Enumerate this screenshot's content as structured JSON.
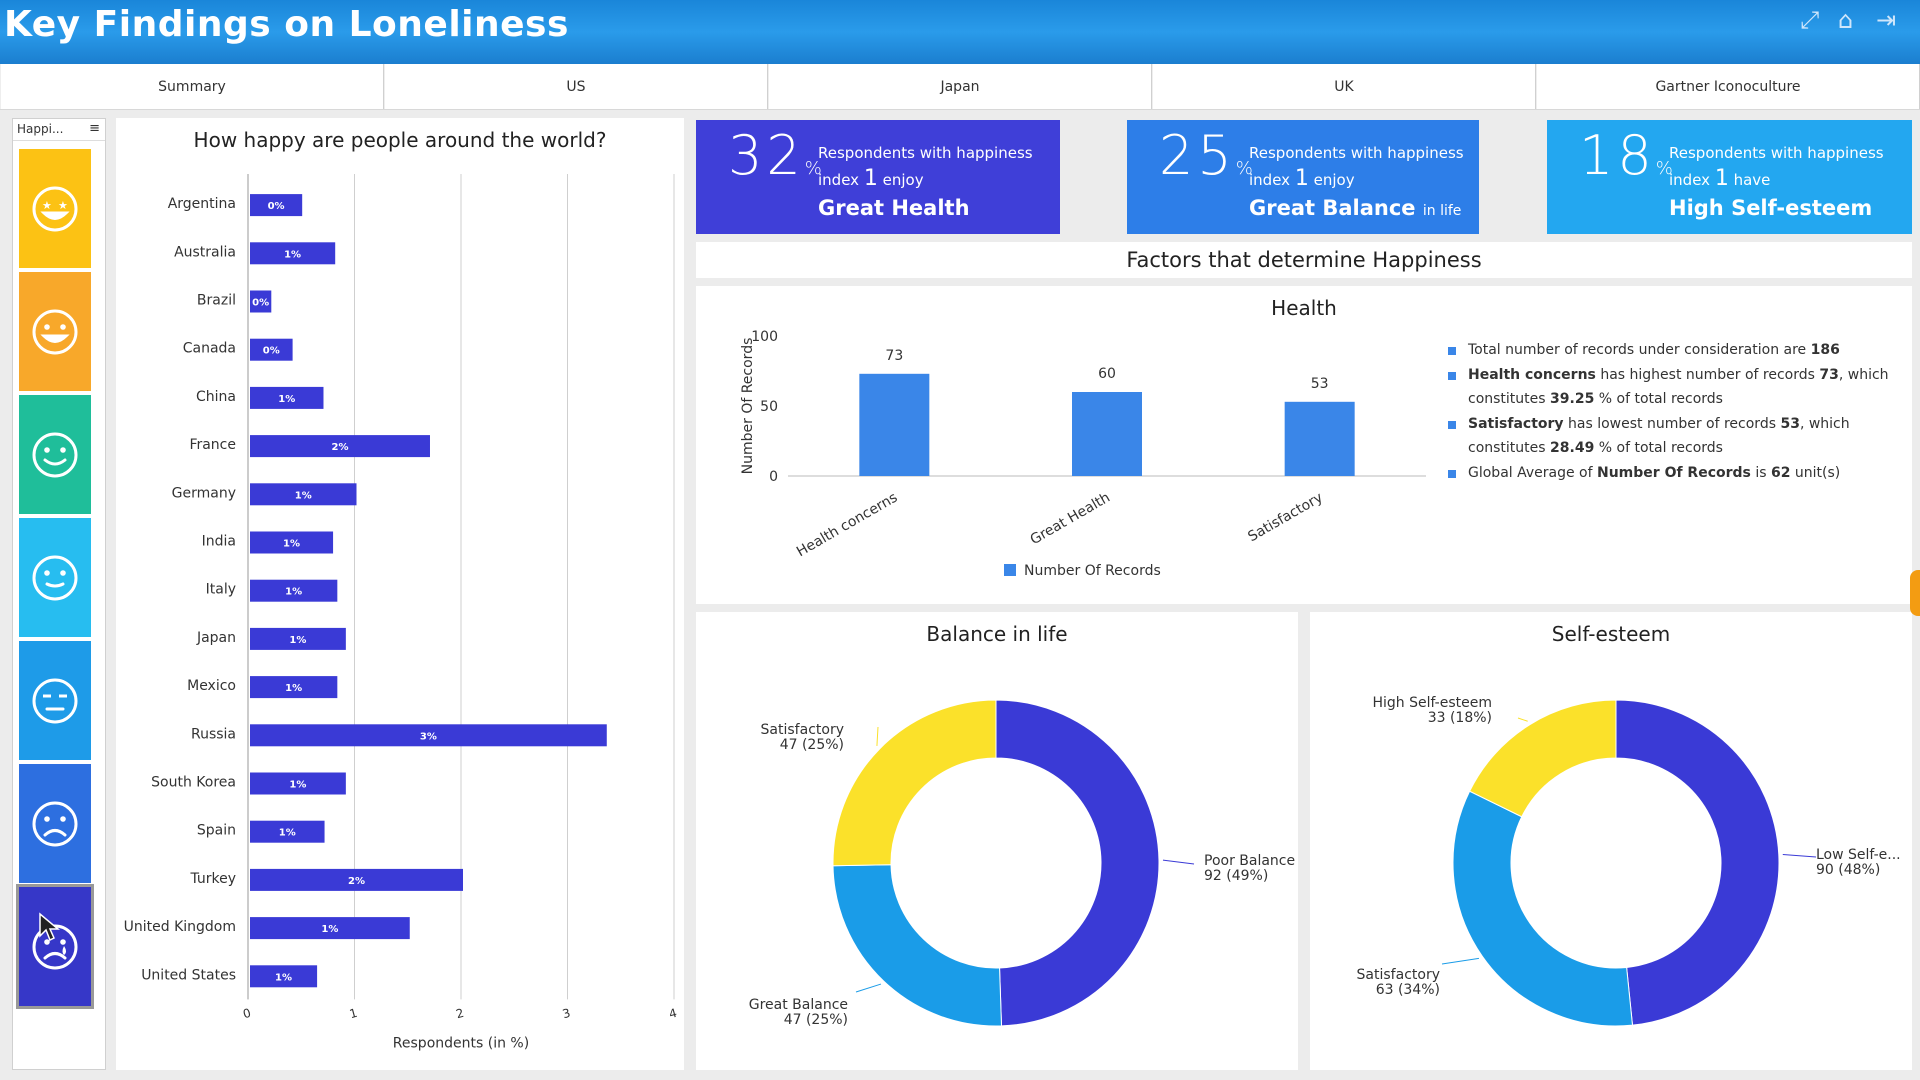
{
  "header": {
    "title": "Key Findings on Loneliness"
  },
  "tabs": [
    "Summary",
    "US",
    "Japan",
    "UK",
    "Gartner Iconoculture"
  ],
  "selector": {
    "label": "Happi...",
    "faces": [
      {
        "name": "star-eyes-face-icon",
        "color": "#fcc214"
      },
      {
        "name": "happy-face-icon",
        "color": "#f8a82a"
      },
      {
        "name": "smile-face-icon",
        "color": "#1fbe9a"
      },
      {
        "name": "slight-smile-face-icon",
        "color": "#27bdf0"
      },
      {
        "name": "unamused-face-icon",
        "color": "#1e9be8"
      },
      {
        "name": "sad-face-icon",
        "color": "#2d6fe0"
      },
      {
        "name": "crying-face-icon",
        "color": "#3637c8"
      }
    ]
  },
  "happiness_chart": {
    "title": "How happy are people around the world?",
    "xlabel": "Respondents (in %)",
    "ticks": [
      "0",
      "1",
      "2",
      "3",
      "4"
    ],
    "chart_data": {
      "type": "bar",
      "orientation": "horizontal",
      "categories": [
        "Argentina",
        "Australia",
        "Brazil",
        "Canada",
        "China",
        "France",
        "Germany",
        "India",
        "Italy",
        "Japan",
        "Mexico",
        "Russia",
        "South Korea",
        "Spain",
        "Turkey",
        "United Kingdom",
        "United States"
      ],
      "values": [
        0.49,
        0.8,
        0.2,
        0.4,
        0.69,
        1.69,
        1.0,
        0.78,
        0.82,
        0.9,
        0.82,
        3.35,
        0.9,
        0.7,
        2.0,
        1.5,
        0.63
      ],
      "data_labels": [
        "0%",
        "1%",
        "0%",
        "0%",
        "1%",
        "2%",
        "1%",
        "1%",
        "1%",
        "1%",
        "1%",
        "3%",
        "1%",
        "1%",
        "2%",
        "1%",
        "1%"
      ],
      "xlim": [
        0,
        4
      ],
      "color": "#3a3ad6"
    }
  },
  "kpis": [
    {
      "value": "32",
      "unit": "%",
      "line1": "Respondents with happiness",
      "line2a": "index",
      "index": "1",
      "line2b": "enjoy",
      "line3": "Great Health",
      "line3small": "",
      "color": "#3f3fd8"
    },
    {
      "value": "25",
      "unit": "%",
      "line1": "Respondents with happiness",
      "line2a": "index",
      "index": "1",
      "line2b": "enjoy",
      "line3": "Great Balance",
      "line3small": "in life",
      "color": "#2d7ee8"
    },
    {
      "value": "18",
      "unit": "%",
      "line1": "Respondents with happiness",
      "line2a": "index",
      "index": "1",
      "line2b": "have",
      "line3": "High Self-esteem",
      "line3small": "",
      "color": "#23a7f0"
    }
  ],
  "factors_title": "Factors that determine Happiness",
  "health": {
    "title": "Health",
    "ylabel": "Number Of Records",
    "legend": "Number Of Records",
    "yticks": [
      "0",
      "50",
      "100"
    ],
    "chart_data": {
      "type": "bar",
      "categories": [
        "Health concerns",
        "Great Health",
        "Satisfactory"
      ],
      "values": [
        73,
        60,
        53
      ],
      "ylim": [
        0,
        100
      ],
      "color": "#3a86e8"
    },
    "notes": [
      {
        "a": "Total number of records under consideration are ",
        "b": "186",
        "c": ""
      },
      {
        "a": "",
        "b": "Health concerns",
        "c": " has highest number of records ",
        "d": "73",
        "e": ", which constitutes ",
        "f": "39.25",
        "g": " % of total records"
      },
      {
        "a": "",
        "b": "Satisfactory",
        "c": " has lowest number of records ",
        "d": "53",
        "e": ", which constitutes ",
        "f": "28.49",
        "g": " % of total records"
      },
      {
        "a": "Global Average of ",
        "b": "Number Of Records",
        "c": " is ",
        "d": "62",
        "e": " unit(s)"
      }
    ]
  },
  "balance": {
    "title": "Balance in life",
    "chart_data": {
      "type": "pie",
      "donut": true,
      "labels": [
        "Poor Balance",
        "Great Balance",
        "Satisfactory"
      ],
      "values": [
        92,
        47,
        47
      ],
      "percent_labels": [
        "92 (49%)",
        "47 (25%)",
        "47 (25%)"
      ],
      "colors": [
        "#3a3ad6",
        "#1a9ce8",
        "#fbe12a"
      ]
    }
  },
  "esteem": {
    "title": "Self-esteem",
    "chart_data": {
      "type": "pie",
      "donut": true,
      "labels": [
        "Low Self-e...",
        "Satisfactory",
        "High Self-esteem"
      ],
      "values": [
        90,
        63,
        33
      ],
      "percent_labels": [
        "90 (48%)",
        "63 (34%)",
        "33 (18%)"
      ],
      "colors": [
        "#3a3ad6",
        "#1a9ce8",
        "#fbe12a"
      ]
    }
  }
}
